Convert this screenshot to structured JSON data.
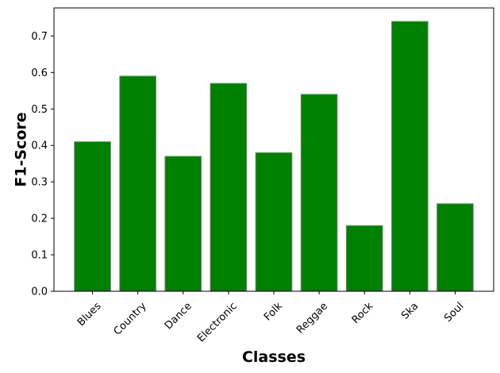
{
  "chart_data": {
    "type": "bar",
    "title": "",
    "xlabel": "Classes",
    "ylabel": "F1-Score",
    "categories": [
      "Blues",
      "Country",
      "Dance",
      "Electronic",
      "Folk",
      "Reggae",
      "Rock",
      "Ska",
      "Soul"
    ],
    "values": [
      0.41,
      0.59,
      0.37,
      0.57,
      0.38,
      0.54,
      0.18,
      0.74,
      0.24
    ],
    "ylim": [
      0,
      0.777
    ],
    "yticks": [
      "0.0",
      "0.1",
      "0.2",
      "0.3",
      "0.4",
      "0.5",
      "0.6",
      "0.7"
    ],
    "grid": false,
    "legend": "none",
    "bar_color": "#008000",
    "bar_edge_color": "#808080"
  }
}
